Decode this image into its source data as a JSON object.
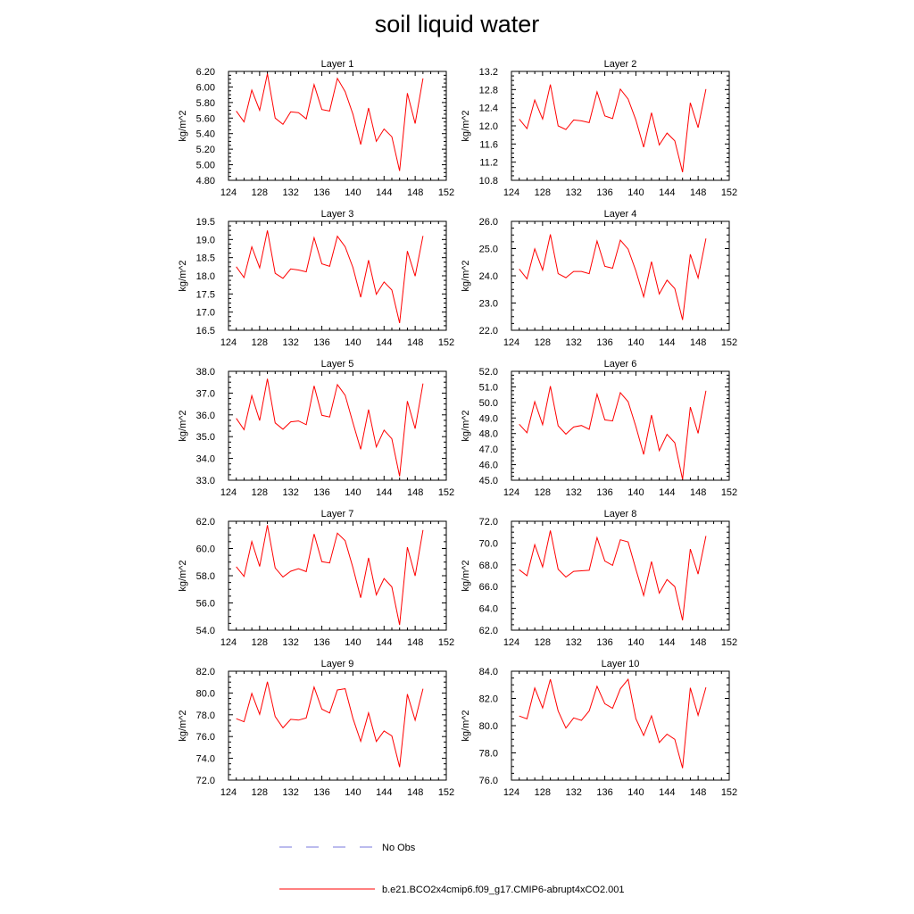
{
  "page_title": "soil liquid water",
  "chart_data": [
    {
      "type": "line",
      "title": "Layer 1",
      "ylabel": "kg/m^2",
      "xlim": [
        124,
        152
      ],
      "ylim": [
        4.8,
        6.2
      ],
      "xticks": [
        "124",
        "128",
        "132",
        "136",
        "140",
        "144",
        "148",
        "152"
      ],
      "yticks": [
        "4.80",
        "5.00",
        "5.20",
        "5.40",
        "5.60",
        "5.80",
        "6.00",
        "6.20"
      ],
      "x": [
        125,
        126,
        127,
        128,
        129,
        130,
        131,
        132,
        133,
        134,
        135,
        136,
        137,
        138,
        139,
        140,
        141,
        142,
        143,
        144,
        145,
        146,
        147,
        148,
        149
      ],
      "series": [
        {
          "name": "b.e21.BCO2x4cmip6.f09_g17.CMIP6-abrupt4xCO2.001",
          "color": "#ff0000",
          "values": [
            5.69,
            5.55,
            5.96,
            5.7,
            6.17,
            5.6,
            5.52,
            5.68,
            5.67,
            5.59,
            6.03,
            5.71,
            5.69,
            6.11,
            5.94,
            5.65,
            5.26,
            5.73,
            5.3,
            5.46,
            5.36,
            4.92,
            5.92,
            5.53,
            6.11
          ]
        }
      ]
    },
    {
      "type": "line",
      "title": "Layer 2",
      "ylabel": "kg/m^2",
      "xlim": [
        124,
        152
      ],
      "ylim": [
        10.8,
        13.2
      ],
      "xticks": [
        "124",
        "128",
        "132",
        "136",
        "140",
        "144",
        "148",
        "152"
      ],
      "yticks": [
        "10.8",
        "11.2",
        "11.6",
        "12.0",
        "12.4",
        "12.8",
        "13.2"
      ],
      "x": [
        125,
        126,
        127,
        128,
        129,
        130,
        131,
        132,
        133,
        134,
        135,
        136,
        137,
        138,
        139,
        140,
        141,
        142,
        143,
        144,
        145,
        146,
        147,
        148,
        149
      ],
      "series": [
        {
          "name": "b.e21.BCO2x4cmip6.f09_g17.CMIP6-abrupt4xCO2.001",
          "color": "#ff0000",
          "values": [
            12.15,
            11.94,
            12.57,
            12.15,
            12.91,
            12.0,
            11.92,
            12.13,
            12.11,
            12.07,
            12.75,
            12.22,
            12.16,
            12.81,
            12.59,
            12.13,
            11.53,
            12.29,
            11.58,
            11.84,
            11.67,
            10.98,
            12.51,
            11.96,
            12.81
          ]
        }
      ]
    },
    {
      "type": "line",
      "title": "Layer 3",
      "ylabel": "kg/m^2",
      "xlim": [
        124,
        152
      ],
      "ylim": [
        16.5,
        19.5
      ],
      "xticks": [
        "124",
        "128",
        "132",
        "136",
        "140",
        "144",
        "148",
        "152"
      ],
      "yticks": [
        "16.5",
        "17.0",
        "17.5",
        "18.0",
        "18.5",
        "19.0",
        "19.5"
      ],
      "x": [
        125,
        126,
        127,
        128,
        129,
        130,
        131,
        132,
        133,
        134,
        135,
        136,
        137,
        138,
        139,
        140,
        141,
        142,
        143,
        144,
        145,
        146,
        147,
        148,
        149
      ],
      "series": [
        {
          "name": "b.e21.BCO2x4cmip6.f09_g17.CMIP6-abrupt4xCO2.001",
          "color": "#ff0000",
          "values": [
            18.25,
            17.95,
            18.8,
            18.22,
            19.25,
            18.07,
            17.93,
            18.19,
            18.16,
            18.11,
            19.05,
            18.33,
            18.26,
            19.09,
            18.8,
            18.23,
            17.41,
            18.43,
            17.49,
            17.83,
            17.61,
            16.7,
            18.68,
            17.99,
            19.1
          ]
        }
      ]
    },
    {
      "type": "line",
      "title": "Layer 4",
      "ylabel": "kg/m^2",
      "xlim": [
        124,
        152
      ],
      "ylim": [
        22.0,
        26.0
      ],
      "xticks": [
        "124",
        "128",
        "132",
        "136",
        "140",
        "144",
        "148",
        "152"
      ],
      "yticks": [
        "22.0",
        "23.0",
        "24.0",
        "25.0",
        "26.0"
      ],
      "x": [
        125,
        126,
        127,
        128,
        129,
        130,
        131,
        132,
        133,
        134,
        135,
        136,
        137,
        138,
        139,
        140,
        141,
        142,
        143,
        144,
        145,
        146,
        147,
        148,
        149
      ],
      "series": [
        {
          "name": "b.e21.BCO2x4cmip6.f09_g17.CMIP6-abrupt4xCO2.001",
          "color": "#ff0000",
          "values": [
            24.25,
            23.89,
            24.99,
            24.21,
            25.52,
            24.08,
            23.93,
            24.16,
            24.16,
            24.08,
            25.28,
            24.35,
            24.28,
            25.31,
            24.98,
            24.18,
            23.23,
            24.52,
            23.33,
            23.84,
            23.53,
            22.38,
            24.79,
            23.92,
            25.37
          ]
        }
      ]
    },
    {
      "type": "line",
      "title": "Layer 5",
      "ylabel": "kg/m^2",
      "xlim": [
        124,
        152
      ],
      "ylim": [
        33.0,
        38.0
      ],
      "xticks": [
        "124",
        "128",
        "132",
        "136",
        "140",
        "144",
        "148",
        "152"
      ],
      "yticks": [
        "33.0",
        "34.0",
        "35.0",
        "36.0",
        "37.0",
        "38.0"
      ],
      "x": [
        125,
        126,
        127,
        128,
        129,
        130,
        131,
        132,
        133,
        134,
        135,
        136,
        137,
        138,
        139,
        140,
        141,
        142,
        143,
        144,
        145,
        146,
        147,
        148,
        149
      ],
      "series": [
        {
          "name": "b.e21.BCO2x4cmip6.f09_g17.CMIP6-abrupt4xCO2.001",
          "color": "#ff0000",
          "values": [
            35.84,
            35.32,
            36.88,
            35.74,
            37.66,
            35.63,
            35.34,
            35.68,
            35.72,
            35.55,
            37.33,
            35.98,
            35.9,
            37.39,
            36.9,
            35.64,
            34.42,
            36.24,
            34.53,
            35.3,
            34.9,
            33.18,
            36.63,
            35.37,
            37.44
          ]
        }
      ]
    },
    {
      "type": "line",
      "title": "Layer 6",
      "ylabel": "kg/m^2",
      "xlim": [
        124,
        152
      ],
      "ylim": [
        45.0,
        52.0
      ],
      "xticks": [
        "124",
        "128",
        "132",
        "136",
        "140",
        "144",
        "148",
        "152"
      ],
      "yticks": [
        "45.0",
        "46.0",
        "47.0",
        "48.0",
        "49.0",
        "50.0",
        "51.0",
        "52.0"
      ],
      "x": [
        125,
        126,
        127,
        128,
        129,
        130,
        131,
        132,
        133,
        134,
        135,
        136,
        137,
        138,
        139,
        140,
        141,
        142,
        143,
        144,
        145,
        146,
        147,
        148,
        149
      ],
      "series": [
        {
          "name": "b.e21.BCO2x4cmip6.f09_g17.CMIP6-abrupt4xCO2.001",
          "color": "#ff0000",
          "values": [
            48.6,
            48.05,
            50.05,
            48.57,
            51.05,
            48.5,
            47.96,
            48.42,
            48.52,
            48.27,
            50.53,
            48.88,
            48.81,
            50.63,
            50.05,
            48.45,
            46.66,
            49.19,
            46.9,
            47.95,
            47.41,
            45.05,
            49.7,
            48.01,
            50.75
          ]
        }
      ]
    },
    {
      "type": "line",
      "title": "Layer 7",
      "ylabel": "kg/m^2",
      "xlim": [
        124,
        152
      ],
      "ylim": [
        54.0,
        62.0
      ],
      "xticks": [
        "124",
        "128",
        "132",
        "136",
        "140",
        "144",
        "148",
        "152"
      ],
      "yticks": [
        "54.0",
        "56.0",
        "58.0",
        "60.0",
        "62.0"
      ],
      "x": [
        125,
        126,
        127,
        128,
        129,
        130,
        131,
        132,
        133,
        134,
        135,
        136,
        137,
        138,
        139,
        140,
        141,
        142,
        143,
        144,
        145,
        146,
        147,
        148,
        149
      ],
      "series": [
        {
          "name": "b.e21.BCO2x4cmip6.f09_g17.CMIP6-abrupt4xCO2.001",
          "color": "#ff0000",
          "values": [
            58.66,
            57.95,
            60.51,
            58.68,
            61.72,
            58.57,
            57.91,
            58.33,
            58.51,
            58.3,
            61.06,
            59.03,
            58.94,
            61.13,
            60.57,
            58.6,
            56.38,
            59.31,
            56.6,
            57.8,
            57.18,
            54.39,
            60.1,
            57.99,
            61.36
          ]
        }
      ]
    },
    {
      "type": "line",
      "title": "Layer 8",
      "ylabel": "kg/m^2",
      "xlim": [
        124,
        152
      ],
      "ylim": [
        62.0,
        72.0
      ],
      "xticks": [
        "124",
        "128",
        "132",
        "136",
        "140",
        "144",
        "148",
        "152"
      ],
      "yticks": [
        "62.0",
        "64.0",
        "66.0",
        "68.0",
        "70.0",
        "72.0"
      ],
      "x": [
        125,
        126,
        127,
        128,
        129,
        130,
        131,
        132,
        133,
        134,
        135,
        136,
        137,
        138,
        139,
        140,
        141,
        142,
        143,
        144,
        145,
        146,
        147,
        148,
        149
      ],
      "series": [
        {
          "name": "b.e21.BCO2x4cmip6.f09_g17.CMIP6-abrupt4xCO2.001",
          "color": "#ff0000",
          "values": [
            67.55,
            67.0,
            69.85,
            67.8,
            71.15,
            67.6,
            66.88,
            67.4,
            67.45,
            67.5,
            70.5,
            68.35,
            67.95,
            70.3,
            70.1,
            67.6,
            65.18,
            68.3,
            65.4,
            66.65,
            66.0,
            62.9,
            69.45,
            67.15,
            70.65
          ]
        }
      ]
    },
    {
      "type": "line",
      "title": "Layer 9",
      "ylabel": "kg/m^2",
      "xlim": [
        124,
        152
      ],
      "ylim": [
        72.0,
        82.0
      ],
      "xticks": [
        "124",
        "128",
        "132",
        "136",
        "140",
        "144",
        "148",
        "152"
      ],
      "yticks": [
        "72.0",
        "74.0",
        "76.0",
        "78.0",
        "80.0",
        "82.0"
      ],
      "x": [
        125,
        126,
        127,
        128,
        129,
        130,
        131,
        132,
        133,
        134,
        135,
        136,
        137,
        138,
        139,
        140,
        141,
        142,
        143,
        144,
        145,
        146,
        147,
        148,
        149
      ],
      "series": [
        {
          "name": "b.e21.BCO2x4cmip6.f09_g17.CMIP6-abrupt4xCO2.001",
          "color": "#ff0000",
          "values": [
            77.64,
            77.36,
            79.96,
            78.04,
            81.03,
            77.84,
            76.8,
            77.58,
            77.51,
            77.71,
            80.55,
            78.52,
            78.16,
            80.28,
            80.39,
            77.67,
            75.56,
            78.17,
            75.55,
            76.52,
            76.06,
            73.2,
            79.89,
            77.5,
            80.39
          ]
        }
      ]
    },
    {
      "type": "line",
      "title": "Layer 10",
      "ylabel": "kg/m^2",
      "xlim": [
        124,
        152
      ],
      "ylim": [
        76.0,
        84.0
      ],
      "xticks": [
        "124",
        "128",
        "132",
        "136",
        "140",
        "144",
        "148",
        "152"
      ],
      "yticks": [
        "76.0",
        "78.0",
        "80.0",
        "82.0",
        "84.0"
      ],
      "x": [
        125,
        126,
        127,
        128,
        129,
        130,
        131,
        132,
        133,
        134,
        135,
        136,
        137,
        138,
        139,
        140,
        141,
        142,
        143,
        144,
        145,
        146,
        147,
        148,
        149
      ],
      "series": [
        {
          "name": "b.e21.BCO2x4cmip6.f09_g17.CMIP6-abrupt4xCO2.001",
          "color": "#ff0000",
          "values": [
            80.71,
            80.5,
            82.77,
            81.3,
            83.41,
            81.09,
            79.82,
            80.57,
            80.39,
            81.08,
            82.89,
            81.61,
            81.28,
            82.7,
            83.41,
            80.51,
            79.28,
            80.72,
            78.76,
            79.38,
            79.0,
            76.88,
            82.78,
            80.76,
            82.81
          ]
        }
      ]
    }
  ],
  "legend": {
    "items": [
      {
        "label": "No Obs",
        "color": "#7777dd",
        "dashed": true
      },
      {
        "label": "b.e21.BCO2x4cmip6.f09_g17.CMIP6-abrupt4xCO2.001",
        "color": "#ff0000",
        "dashed": false
      }
    ]
  }
}
